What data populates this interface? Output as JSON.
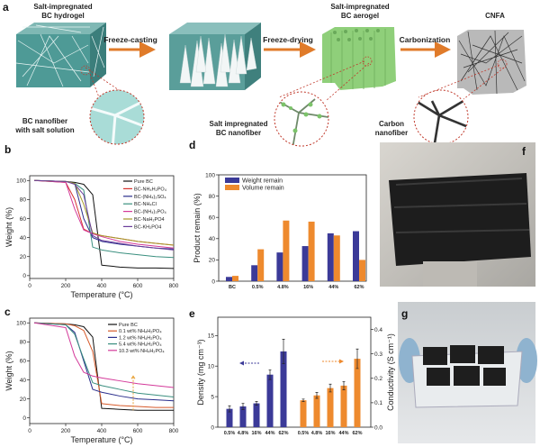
{
  "panel_a": {
    "label": "a",
    "stage1_title_l1": "Salt-impregnated",
    "stage1_title_l2": "BC hydrogel",
    "step1": "Freeze-casting",
    "step2": "Freeze-drying",
    "stage3_title_l1": "Salt-impregnated",
    "stage3_title_l2": "BC aerogel",
    "step3": "Carbonization",
    "stage4_title": "CNFA",
    "inset1_l1": "BC nanofiber",
    "inset1_l2": "with salt solution",
    "inset2_l1": "Salt impregnated",
    "inset2_l2": "BC nanofiber",
    "inset3_l1": "Carbon",
    "inset3_l2": "nanofiber",
    "colors": {
      "hydrogel": "#4e9a96",
      "aerogel": "#8fcf7a",
      "arrow": "#e07b2a",
      "inset_border": "#c0392b"
    }
  },
  "chart_data": [
    {
      "id": "b",
      "label": "b",
      "type": "line",
      "xlabel": "Temperature (°C)",
      "ylabel": "Weight (%)",
      "xlim": [
        0,
        800
      ],
      "ylim": [
        -3,
        105
      ],
      "xticks": [
        0,
        200,
        400,
        600,
        800
      ],
      "yticks": [
        0,
        20,
        40,
        60,
        80,
        100
      ],
      "legend": "top-right",
      "x": [
        25,
        200,
        250,
        300,
        350,
        400,
        500,
        600,
        700,
        800
      ],
      "series": [
        {
          "name": "Pure BC",
          "color": "#111111",
          "values": [
            100,
            99,
            98,
            96,
            85,
            11,
            9,
            8,
            8,
            7.5
          ]
        },
        {
          "name": "BC-NH₄H₂PO₄",
          "color": "#d6322f",
          "values": [
            100,
            98,
            80,
            49,
            44,
            42,
            39,
            36,
            34,
            32
          ]
        },
        {
          "name": "BC-(NH₄)₂SO₄",
          "color": "#2b2e8c",
          "values": [
            100,
            99,
            97,
            60,
            40,
            36,
            33,
            31,
            29,
            28
          ]
        },
        {
          "name": "BC-NH₄Cl",
          "color": "#3a8f7f",
          "values": [
            100,
            99,
            97,
            90,
            30,
            27,
            24,
            22,
            20,
            19
          ]
        },
        {
          "name": "BC-(NH₄)₃PO₄",
          "color": "#d43a9a",
          "values": [
            100,
            98,
            70,
            48,
            44,
            41,
            36,
            33,
            31,
            29
          ]
        },
        {
          "name": "BC-NaH₂PO4",
          "color": "#a59a2a",
          "values": [
            100,
            99,
            97,
            75,
            45,
            42,
            39,
            36,
            34,
            32
          ]
        },
        {
          "name": "BC-KH₂PO4",
          "color": "#6a3d9a",
          "values": [
            100,
            99,
            96,
            85,
            42,
            37,
            34,
            31,
            29,
            27
          ]
        }
      ]
    },
    {
      "id": "c",
      "label": "c",
      "type": "line",
      "xlabel": "Temperature (°C)",
      "ylabel": "Weight (%)",
      "xlim": [
        0,
        800
      ],
      "ylim": [
        -6,
        105
      ],
      "xticks": [
        0,
        200,
        400,
        600,
        800
      ],
      "yticks": [
        0,
        20,
        40,
        60,
        80,
        100
      ],
      "legend": "top-right",
      "x": [
        25,
        200,
        250,
        300,
        350,
        400,
        500,
        600,
        700,
        800
      ],
      "series": [
        {
          "name": "Pure BC",
          "color": "#111111",
          "values": [
            100,
            99,
            98,
            96,
            85,
            10,
            9,
            8,
            8,
            8
          ]
        },
        {
          "name": "0.1 wt% NH₄H₂PO₄",
          "color": "#d65a2a",
          "values": [
            100,
            99,
            97,
            92,
            70,
            15,
            13,
            12,
            11,
            11
          ]
        },
        {
          "name": "1.2 wt% NH₄H₂PO₄",
          "color": "#2b2e8c",
          "values": [
            100,
            98,
            90,
            60,
            30,
            27,
            23,
            20,
            19,
            18
          ]
        },
        {
          "name": "5.4 wt% NH₄H₂PO₄",
          "color": "#3a8f7f",
          "values": [
            100,
            98,
            88,
            62,
            37,
            34,
            30,
            26,
            24,
            22
          ]
        },
        {
          "name": "10.3 wt% NH₄H₂PO₄",
          "color": "#d43a9a",
          "values": [
            100,
            95,
            65,
            48,
            44,
            42,
            39,
            36,
            34,
            32
          ]
        }
      ],
      "annotation": {
        "type": "dashed-arrow-up",
        "x": 575,
        "y_from": 8,
        "y_to": 44,
        "color": "#e8a33a"
      }
    },
    {
      "id": "d",
      "label": "d",
      "type": "bar",
      "ylabel": "Product remain (%)",
      "ylim": [
        0,
        100
      ],
      "yticks": [
        0,
        20,
        40,
        60,
        80,
        100
      ],
      "legend": "top-left",
      "categories": [
        "BC",
        "0.5%",
        "4.8%",
        "16%",
        "44%",
        "62%"
      ],
      "series": [
        {
          "name": "Weight remain",
          "color": "#3b3a98",
          "values": [
            4,
            15,
            27,
            33,
            45,
            47
          ]
        },
        {
          "name": "Volume remain",
          "color": "#ee8a2e",
          "values": [
            5,
            30,
            57,
            56,
            43,
            20
          ]
        }
      ]
    },
    {
      "id": "e",
      "label": "e",
      "type": "bar",
      "ylabel": "Density (mg cm⁻³)",
      "ylabel_right": "Conductivity (S cm⁻¹)",
      "ylim": [
        0,
        18
      ],
      "ylim_right": [
        0,
        0.45
      ],
      "yticks": [
        0,
        5,
        10,
        15
      ],
      "yticks_right": [
        "0.0",
        "0.1",
        "0.2",
        "0.3",
        "0.4"
      ],
      "categories": [
        "0.5%",
        "4.8%",
        "16%",
        "44%",
        "62%"
      ],
      "series": [
        {
          "name": "Density",
          "axis": "left",
          "color": "#3b3a98",
          "values": [
            3.0,
            3.4,
            3.9,
            8.6,
            12.4
          ],
          "errors": [
            0.5,
            0.5,
            0.3,
            0.8,
            2.0
          ]
        },
        {
          "name": "Conductivity",
          "axis": "right",
          "color": "#ee8a2e",
          "values": [
            0.11,
            0.13,
            0.16,
            0.17,
            0.28
          ],
          "errors": [
            0.005,
            0.012,
            0.016,
            0.017,
            0.04
          ]
        }
      ]
    }
  ],
  "panel_f": {
    "label": "f"
  },
  "panel_g": {
    "label": "g"
  }
}
